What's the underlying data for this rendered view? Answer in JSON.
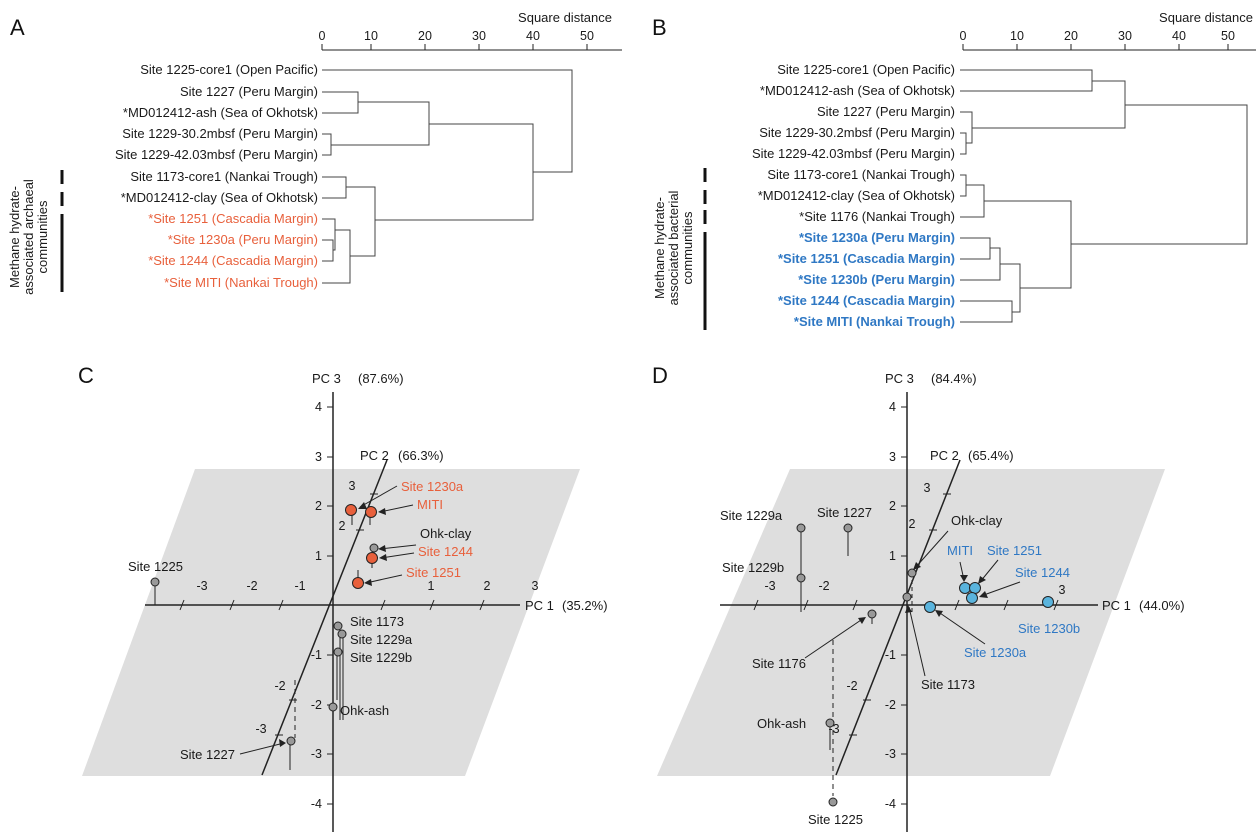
{
  "panels": {
    "A": {
      "letter": "A",
      "axis_title": "Square distance",
      "ticks": [
        "0",
        "10",
        "20",
        "30",
        "40",
        "50"
      ],
      "group_label": [
        "Methane hydrate-",
        "associated archaeal",
        "communities"
      ],
      "leaves": [
        "Site 1225-core1 (Open Pacific)",
        "Site 1227 (Peru Margin)",
        "*MD012412-ash (Sea of Okhotsk)",
        "Site 1229-30.2mbsf (Peru Margin)",
        "Site 1229-42.03mbsf (Peru Margin)",
        "Site 1173-core1 (Nankai Trough)",
        "*MD012412-clay (Sea of Okhotsk)",
        "*Site 1251 (Cascadia Margin)",
        "*Site 1230a (Peru Margin)",
        "*Site 1244 (Cascadia Margin)",
        "*Site MITI (Nankai Trough)"
      ]
    },
    "B": {
      "letter": "B",
      "axis_title": "Square distance",
      "ticks": [
        "0",
        "10",
        "20",
        "30",
        "40",
        "50"
      ],
      "group_label": [
        "Methane hydrate-",
        "associated bacterial",
        "communities"
      ],
      "leaves": [
        "Site 1225-core1 (Open Pacific)",
        "*MD012412-ash (Sea of Okhotsk)",
        "Site 1227 (Peru Margin)",
        "Site 1229-30.2mbsf (Peru Margin)",
        "Site 1229-42.03mbsf (Peru Margin)",
        "Site 1173-core1 (Nankai Trough)",
        "*MD012412-clay (Sea of Okhotsk)",
        "*Site 1176 (Nankai Trough)",
        "*Site 1230a (Peru Margin)",
        "*Site 1251 (Cascadia Margin)",
        "*Site 1230b (Peru Margin)",
        "*Site 1244 (Cascadia Margin)",
        "*Site MITI (Nankai Trough)"
      ]
    },
    "C": {
      "letter": "C",
      "pc1": "PC 1",
      "pc1_pct": "(35.2%)",
      "pc2": "PC 2",
      "pc2_pct": "(66.3%)",
      "pc3": "PC 3",
      "pc3_pct": "(87.6%)",
      "x_ticks": [
        "-3",
        "-2",
        "-1",
        "1",
        "2",
        "3"
      ],
      "y_ticks": [
        "4",
        "3",
        "2",
        "1",
        "-1",
        "-2",
        "-3",
        "-4"
      ],
      "z_ticks": [
        "3",
        "2",
        "-2",
        "-3"
      ],
      "labels": {
        "site1225": "Site 1225",
        "site1230a": "Site 1230a",
        "miti": "MITI",
        "ohk_clay": "Ohk-clay",
        "site1244": "Site 1244",
        "site1251": "Site 1251",
        "site1173": "Site 1173",
        "site1229a": "Site 1229a",
        "site1229b": "Site 1229b",
        "ohk_ash": "Ohk-ash",
        "site1227": "Site 1227"
      }
    },
    "D": {
      "letter": "D",
      "pc1": "PC 1",
      "pc1_pct": "(44.0%)",
      "pc2": "PC 2",
      "pc2_pct": "(65.4%)",
      "pc3": "PC 3",
      "pc3_pct": "(84.4%)",
      "x_ticks": [
        "-3",
        "-2",
        "3"
      ],
      "y_ticks": [
        "4",
        "3",
        "2",
        "1",
        "-1",
        "-2",
        "-3",
        "-4"
      ],
      "z_ticks": [
        "3",
        "2",
        "-2",
        "-3"
      ],
      "labels": {
        "site1229a": "Site 1229a",
        "site1227": "Site 1227",
        "ohk_clay": "Ohk-clay",
        "site1229b": "Site 1229b",
        "miti": "MITI",
        "site1251": "Site 1251",
        "site1244": "Site 1244",
        "site1230b": "Site 1230b",
        "site1176": "Site 1176",
        "site1230a": "Site 1230a",
        "site1173": "Site 1173",
        "ohk_ash": "Ohk-ash",
        "site1225": "Site 1225"
      }
    }
  },
  "colors": {
    "archaeal_highlight": "#e8603c",
    "bacterial_highlight": "#2f78c4",
    "plane": "#dedede",
    "ink": "#1a1a1a"
  }
}
